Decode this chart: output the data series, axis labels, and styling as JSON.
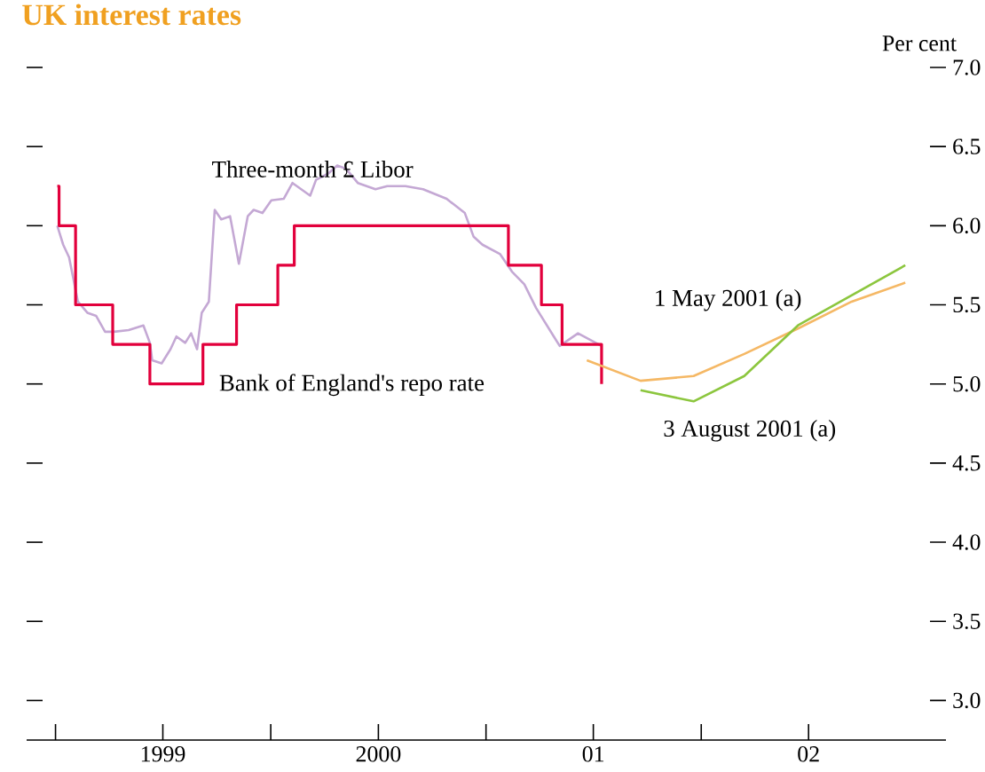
{
  "chart_data": {
    "type": "line",
    "title": "UK interest rates",
    "ylabel": "Per cent",
    "xlim": [
      "1998-11-13",
      "2003-02-20"
    ],
    "xticks": [
      {
        "value": "1999-01-01",
        "label": null
      },
      {
        "value": "1999-07-02",
        "label": "1999"
      },
      {
        "value": "2000-01-01",
        "label": null
      },
      {
        "value": "2000-07-02",
        "label": "2000"
      },
      {
        "value": "2001-01-01",
        "label": null
      },
      {
        "value": "2001-07-02",
        "label": "01"
      },
      {
        "value": "2002-01-01",
        "label": null
      },
      {
        "value": "2002-07-02",
        "label": "02"
      }
    ],
    "ylim": [
      2.75,
      7.0
    ],
    "yticks": [
      {
        "value": 3,
        "label": "3.0"
      },
      3.5,
      {
        "value": 4,
        "label": "4.0"
      },
      4.5,
      {
        "value": 5,
        "label": "5.0"
      },
      5.5,
      {
        "value": 6,
        "label": "6.0"
      },
      6.5,
      {
        "value": 7,
        "label": "7.0"
      }
    ],
    "grid": false,
    "series": [
      {
        "name": "Three-month £ Libor",
        "color": "#c4a8d4",
        "x": [
          "1999-01-04",
          "1999-01-14",
          "1999-01-24",
          "1999-02-08",
          "1999-02-24",
          "1999-03-11",
          "1999-03-26",
          "1999-04-10",
          "1999-05-05",
          "1999-05-30",
          "1999-06-10",
          "1999-06-14",
          "1999-06-30",
          "1999-07-15",
          "1999-07-25",
          "1999-08-09",
          "1999-08-19",
          "1999-08-29",
          "1999-09-06",
          "1999-09-18",
          "1999-09-28",
          "1999-10-09",
          "1999-10-24",
          "1999-11-08",
          "1999-11-23",
          "1999-12-03",
          "1999-12-18",
          "2000-01-02",
          "2000-01-23",
          "2000-02-07",
          "2000-03-08",
          "2000-03-18",
          "2000-04-08",
          "2000-04-23",
          "2000-05-08",
          "2000-05-28",
          "2000-06-27",
          "2000-07-17",
          "2000-08-17",
          "2000-09-16",
          "2000-10-26",
          "2000-11-26",
          "2000-12-11",
          "2000-12-26",
          "2001-01-25",
          "2001-02-14",
          "2001-03-07",
          "2001-03-27",
          "2001-04-26",
          "2001-05-06",
          "2001-06-06",
          "2001-07-16"
        ],
        "values": [
          6.0,
          5.88,
          5.8,
          5.52,
          5.45,
          5.43,
          5.33,
          5.33,
          5.34,
          5.37,
          5.26,
          5.15,
          5.13,
          5.22,
          5.3,
          5.26,
          5.32,
          5.22,
          5.45,
          5.52,
          6.1,
          6.04,
          6.06,
          5.76,
          6.06,
          6.1,
          6.08,
          6.16,
          6.17,
          6.27,
          6.19,
          6.29,
          6.33,
          6.38,
          6.36,
          6.27,
          6.23,
          6.25,
          6.25,
          6.23,
          6.17,
          6.08,
          5.93,
          5.88,
          5.82,
          5.71,
          5.63,
          5.48,
          5.3,
          5.24,
          5.32,
          5.24
        ]
      },
      {
        "name": "Bank of England's repo rate",
        "type": "step",
        "color": "#e2003c",
        "x": [
          "1999-01-04",
          "1999-01-07",
          "1999-02-04",
          "1999-04-08",
          "1999-06-10",
          "1999-09-08",
          "1999-11-04",
          "2000-01-13",
          "2000-02-10",
          "2001-02-08",
          "2001-04-05",
          "2001-05-10",
          "2001-07-16"
        ],
        "values": [
          6.25,
          6.0,
          5.5,
          5.25,
          5.0,
          5.25,
          5.5,
          5.75,
          6.0,
          5.75,
          5.5,
          5.25,
          5.0
        ]
      },
      {
        "name": "1  May 2001 (a)",
        "color": "#f5b865",
        "x": [
          "2001-06-21",
          "2001-09-20",
          "2001-12-19",
          "2002-03-15",
          "2002-06-14",
          "2002-09-13",
          "2002-12-13"
        ],
        "values": [
          5.15,
          5.02,
          5.05,
          5.19,
          5.35,
          5.52,
          5.64
        ]
      },
      {
        "name": "3 August 2001 (a)",
        "color": "#8cc63e",
        "x": [
          "2001-09-20",
          "2001-12-19",
          "2002-03-15",
          "2002-06-14",
          "2002-09-13",
          "2002-12-13"
        ],
        "values": [
          4.96,
          4.89,
          5.05,
          5.37,
          5.56,
          5.75
        ]
      }
    ]
  }
}
